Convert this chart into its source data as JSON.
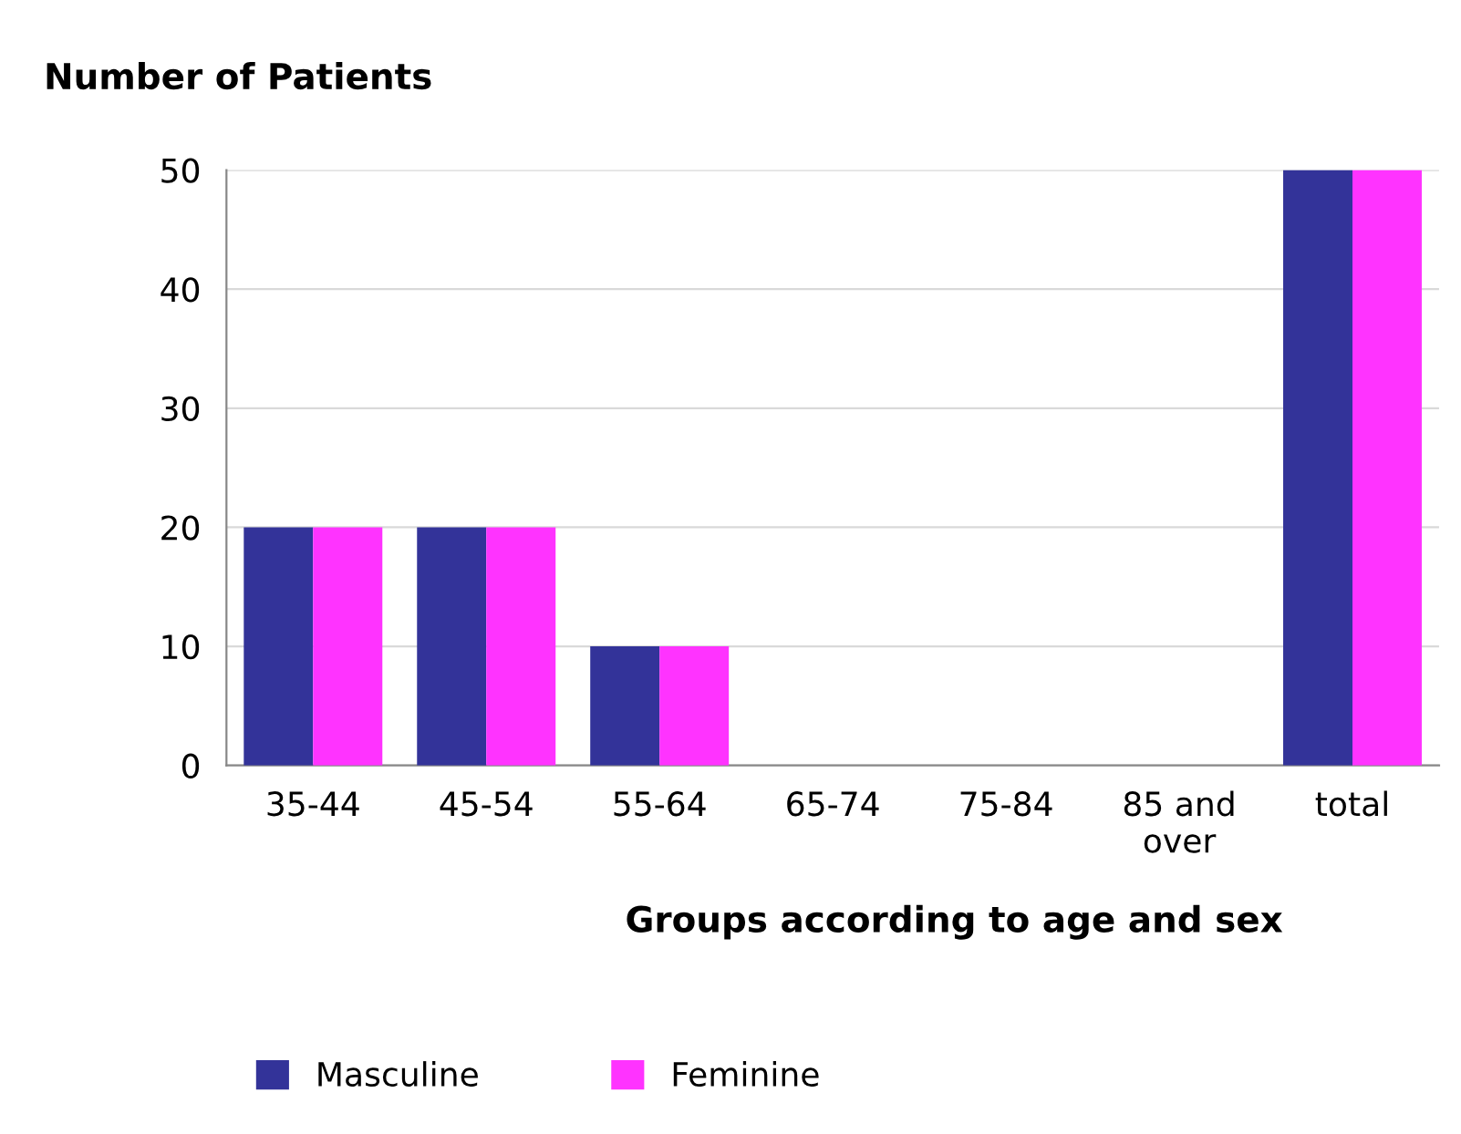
{
  "chart_data": {
    "type": "bar",
    "ylabel": "Number of Patients",
    "xlabel": "Groups according to age and sex",
    "categories": [
      "35-44",
      "45-54",
      "55-64",
      "65-74",
      "75-84",
      "85 and\nover",
      "total"
    ],
    "series": [
      {
        "name": "Masculine",
        "color": "#333399",
        "values": [
          20,
          20,
          10,
          0,
          0,
          0,
          50
        ]
      },
      {
        "name": "Feminine",
        "color": "#ff33ff",
        "values": [
          20,
          20,
          10,
          0,
          0,
          0,
          50
        ]
      }
    ],
    "ylim": [
      0,
      50
    ],
    "yticks": [
      0,
      10,
      20,
      30,
      40,
      50
    ],
    "grid": "y",
    "legend": "bottom"
  }
}
